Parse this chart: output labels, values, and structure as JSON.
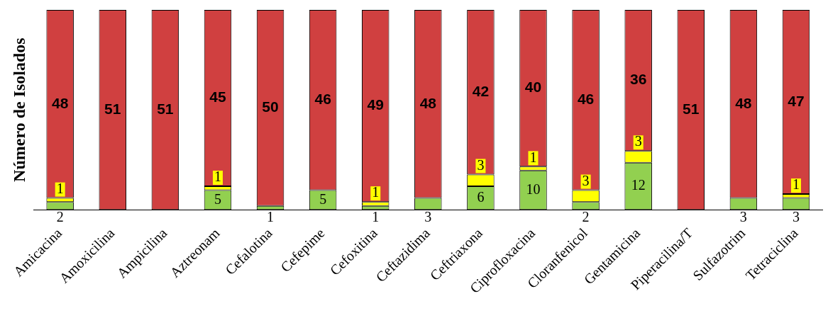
{
  "chart_data": {
    "type": "bar",
    "stacked": true,
    "ylabel": "Número de Isolados",
    "tick_labels": "x",
    "legend": false,
    "grid": false,
    "categories": [
      "Amicacina",
      "Amoxicilina",
      "Ampicilina",
      "Aztreonam",
      "Cefalotina",
      "Cefepime",
      "Cefoxitina",
      "Ceftazidima",
      "Ceftriaxona",
      "Ciprofloxacina",
      "Cloranfenicol",
      "Gentamicina",
      "Piperacilina/T",
      "Sulfazotrim",
      "Tetraciclina"
    ],
    "series": [
      {
        "color": "#92d050",
        "values": [
          2,
          0,
          0,
          5,
          1,
          5,
          1,
          3,
          6,
          10,
          2,
          12,
          0,
          3,
          3
        ],
        "value_labels": [
          "2",
          null,
          null,
          "5",
          "1",
          "5",
          "1",
          "3",
          "6",
          "10",
          "2",
          "12",
          null,
          "3",
          "3"
        ]
      },
      {
        "color": "#ffff00",
        "values": [
          1,
          0,
          0,
          1,
          0,
          0,
          1,
          0,
          3,
          1,
          3,
          3,
          0,
          0,
          1
        ],
        "value_labels": [
          "1",
          null,
          null,
          "1",
          null,
          null,
          "1",
          null,
          "3",
          "1",
          "3",
          "3",
          null,
          null,
          "1"
        ]
      },
      {
        "color": "#d04040",
        "values": [
          48,
          51,
          51,
          45,
          50,
          46,
          49,
          48,
          42,
          40,
          46,
          36,
          51,
          48,
          47
        ],
        "value_labels": [
          "48",
          "51",
          "51",
          "45",
          "50",
          "46",
          "49",
          "48",
          "42",
          "40",
          "46",
          "36",
          "51",
          "48",
          "47"
        ]
      }
    ]
  }
}
